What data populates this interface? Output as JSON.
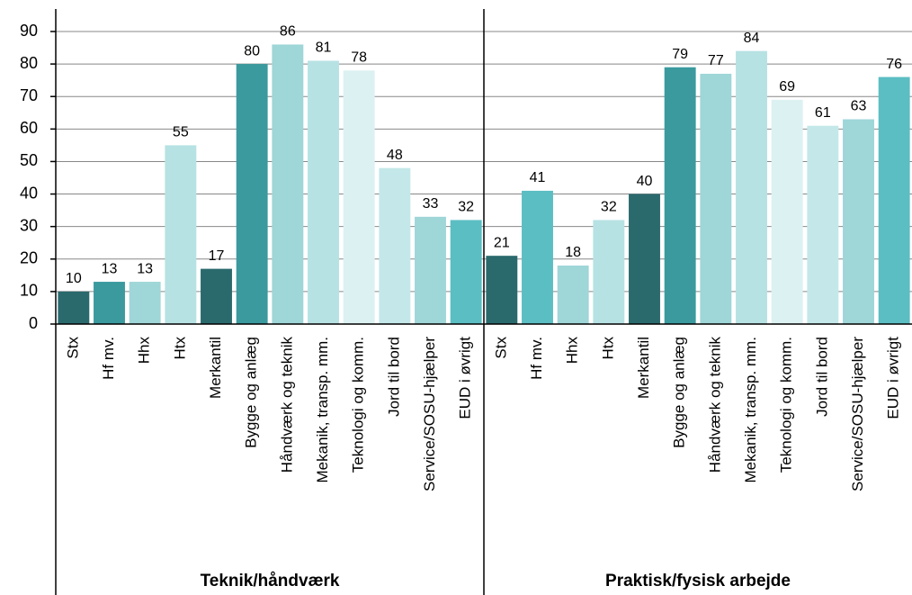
{
  "chart_data": {
    "type": "bar",
    "ylim": [
      0,
      90
    ],
    "yticks": [
      0,
      10,
      20,
      30,
      40,
      50,
      60,
      70,
      80,
      90
    ],
    "grid": true,
    "groups": [
      {
        "label": "Teknik/håndværk",
        "categories": [
          "Stx",
          "Hf mv.",
          "Hhx",
          "Htx",
          "Merkantil",
          "Bygge og anlæg",
          "Håndværk og teknik",
          "Mekanik, transp. mm.",
          "Teknologi og komm.",
          "Jord til bord",
          "Service/SOSU-hjælper",
          "EUD i øvrigt"
        ],
        "values": [
          10,
          13,
          13,
          55,
          17,
          80,
          86,
          81,
          78,
          48,
          33,
          32
        ],
        "colors": [
          "#2a6a6d",
          "#3a9a9e",
          "#9fd6d8",
          "#b7e2e4",
          "#2a6a6d",
          "#3a9a9e",
          "#9fd6d8",
          "#b7e2e4",
          "#dcf1f2",
          "#c4e8e9",
          "#9fd6d8",
          "#5bbec3"
        ]
      },
      {
        "label": "Praktisk/fysisk arbejde",
        "categories": [
          "Stx",
          "Hf mv.",
          "Hhx",
          "Htx",
          "Merkantil",
          "Bygge og anlæg",
          "Håndværk og teknik",
          "Mekanik, transp. mm.",
          "Teknologi og komm.",
          "Jord til bord",
          "Service/SOSU-hjælper",
          "EUD i øvrigt"
        ],
        "values": [
          21,
          41,
          18,
          32,
          40,
          79,
          77,
          84,
          69,
          61,
          63,
          76
        ],
        "colors": [
          "#2a6a6d",
          "#5bbec3",
          "#9fd6d8",
          "#b7e2e4",
          "#2a6a6d",
          "#3a9a9e",
          "#9fd6d8",
          "#b7e2e4",
          "#dcf1f2",
          "#c4e8e9",
          "#9fd6d8",
          "#5bbec3"
        ]
      }
    ]
  }
}
